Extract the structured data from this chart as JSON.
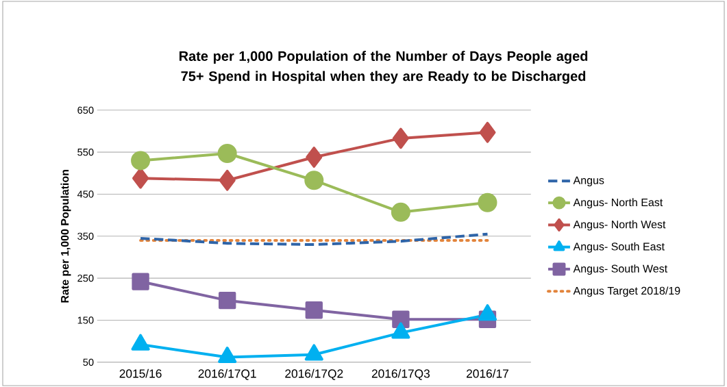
{
  "chart_data": {
    "type": "line",
    "title": "Rate per 1,000 Population of the Number of Days People aged 75+ Spend in Hospital when they are Ready to be Discharged",
    "ylabel": "Rate per 1,000 Population",
    "categories": [
      "2015/16",
      "2016/17Q1",
      "2016/17Q2",
      "2016/17Q3",
      "2016/17"
    ],
    "series": [
      {
        "name": "Angus",
        "color": "#2e64a8",
        "values": [
          345,
          333,
          330,
          338,
          355
        ],
        "marker": "none",
        "line_style": "dashed"
      },
      {
        "name": "Angus- North East",
        "color": "#9bbb59",
        "values": [
          530,
          547,
          483,
          407,
          430
        ],
        "marker": "circle",
        "line_style": "solid"
      },
      {
        "name": "Angus- North West",
        "color": "#c0504d",
        "values": [
          488,
          483,
          538,
          583,
          597
        ],
        "marker": "diamond",
        "line_style": "solid"
      },
      {
        "name": "Angus- South East",
        "color": "#00b0f0",
        "values": [
          92,
          62,
          68,
          120,
          163
        ],
        "marker": "triangle",
        "line_style": "solid"
      },
      {
        "name": "Angus- South West",
        "color": "#8064a2",
        "values": [
          242,
          197,
          174,
          152,
          152
        ],
        "marker": "square",
        "line_style": "solid"
      },
      {
        "name": "Angus Target 2018/19",
        "color": "#e2843c",
        "values": [
          340,
          340,
          340,
          340,
          340
        ],
        "marker": "none",
        "line_style": "dotted"
      }
    ],
    "ylim": [
      50,
      650
    ],
    "yticks": [
      50,
      150,
      250,
      350,
      450,
      550,
      650
    ],
    "grid": "y",
    "legend": "right"
  }
}
